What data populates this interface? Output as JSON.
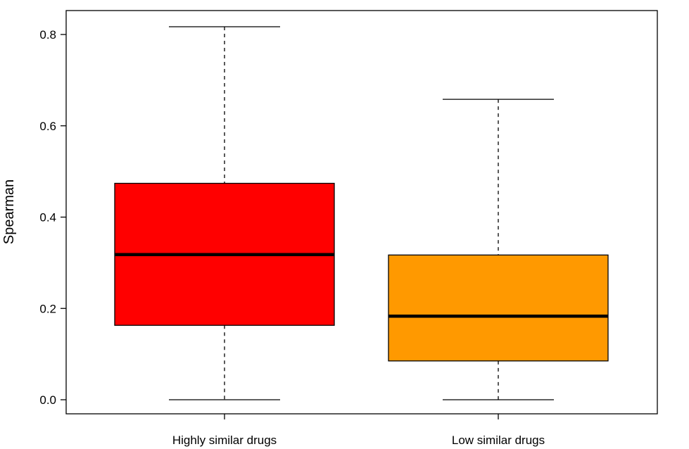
{
  "chart_data": {
    "type": "boxplot",
    "title": "",
    "xlabel": "",
    "ylabel": "Spearman",
    "ylim": [
      -0.035,
      0.85
    ],
    "yticks": [
      0.0,
      0.2,
      0.4,
      0.6,
      0.8
    ],
    "ytick_labels": [
      "0.0",
      "0.2",
      "0.4",
      "0.6",
      "0.8"
    ],
    "grid": false,
    "categories": [
      "Highly similar drugs",
      "Low similar drugs"
    ],
    "boxes": [
      {
        "whisker_low": 0.0,
        "q1": 0.163,
        "median": 0.318,
        "q3": 0.474,
        "whisker_high": 0.817,
        "color": "#ff0000"
      },
      {
        "whisker_low": 0.0,
        "q1": 0.085,
        "median": 0.183,
        "q3": 0.317,
        "whisker_high": 0.658,
        "color": "#ff9900"
      }
    ]
  }
}
